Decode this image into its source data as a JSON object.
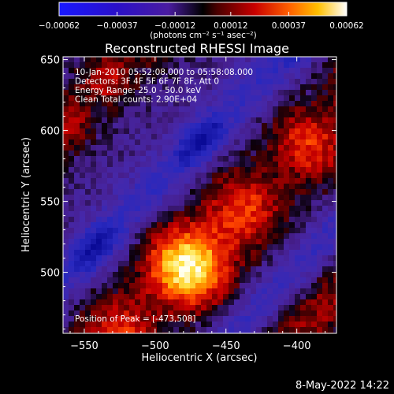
{
  "chart_data": {
    "type": "heatmap",
    "title": "Reconstructed RHESSI Image",
    "xlabel": "Heliocentric X (arcsec)",
    "ylabel": "Heliocentric Y (arcsec)",
    "xlim": [
      -565,
      -372
    ],
    "ylim": [
      457,
      652
    ],
    "xticks": [
      -550,
      -500,
      -450,
      -400
    ],
    "yticks": [
      500,
      550,
      600,
      650
    ],
    "xtick_labels": [
      "−550",
      "−500",
      "−450",
      "−400"
    ],
    "yticks_labels": [
      "500",
      "550",
      "600",
      "650"
    ],
    "colorbar": {
      "range": [
        -0.00062,
        0.00062
      ],
      "ticks": [
        -0.00062,
        -0.00037,
        -0.00012,
        0.00012,
        0.00037,
        0.00062
      ],
      "tick_labels": [
        "−0.00062",
        "−0.00037",
        "−0.00012",
        "0.00012",
        "0.00037",
        "0.00062"
      ],
      "units_label": "(photons cm⁻² s⁻¹ asec⁻²)"
    },
    "annotations": [
      "10-Jan-2010 05:52:08.000 to 05:58:08.000",
      "Detectors: 3F 4F 5F 6F 7F 8F, Att 0",
      "Energy Range: 25.0 - 50.0 keV",
      "Clean     Total counts: 2.90E+04",
      "Position of Peak = [-473,508]"
    ],
    "peak": [
      -473,
      508
    ],
    "grid": false
  },
  "footer": {
    "timestamp": "8-May-2022 14:22"
  }
}
